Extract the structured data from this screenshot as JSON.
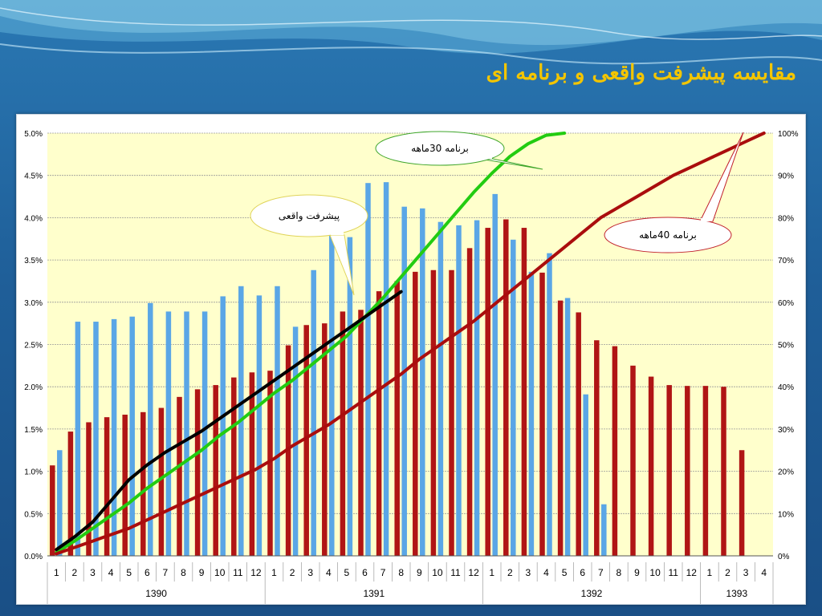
{
  "slide": {
    "title": "مقایسه پیشرفت واقعی و برنامه ای"
  },
  "colors": {
    "title": "#f3c500",
    "plot_bg": "#ffffcc",
    "bar_blue": "#5aa6e6",
    "bar_red": "#b01515",
    "line_green": "#22cc11",
    "line_red": "#aa0d0d",
    "line_black": "#000000"
  },
  "chart_data": {
    "type": "bar",
    "categories": [
      "1",
      "2",
      "3",
      "4",
      "5",
      "6",
      "7",
      "8",
      "9",
      "10",
      "11",
      "12",
      "1",
      "2",
      "3",
      "4",
      "5",
      "6",
      "7",
      "8",
      "9",
      "10",
      "11",
      "12",
      "1",
      "2",
      "3",
      "4",
      "5",
      "6",
      "7",
      "8",
      "9",
      "10",
      "11",
      "12",
      "1",
      "2",
      "3",
      "4"
    ],
    "year_groups": [
      {
        "label": "1390",
        "count": 12
      },
      {
        "label": "1391",
        "count": 12
      },
      {
        "label": "1392",
        "count": 12
      },
      {
        "label": "1393",
        "count": 4
      }
    ],
    "left_axis": {
      "min": 0,
      "max": 5,
      "ticks": [
        "0.0%",
        "0.5%",
        "1.0%",
        "1.5%",
        "2.0%",
        "2.5%",
        "3.0%",
        "3.5%",
        "4.0%",
        "4.5%",
        "5.0%"
      ]
    },
    "right_axis": {
      "min": 0,
      "max": 100,
      "ticks": [
        "0%",
        "10%",
        "20%",
        "30%",
        "40%",
        "50%",
        "60%",
        "70%",
        "80%",
        "90%",
        "100%"
      ]
    },
    "grid": true,
    "bar_series": [
      {
        "color": "#b01515",
        "values": [
          1.07,
          1.47,
          1.58,
          1.64,
          1.67,
          1.7,
          1.75,
          1.88,
          1.97,
          2.02,
          2.11,
          2.17,
          2.19,
          2.49,
          2.73,
          2.75,
          2.89,
          2.91,
          3.13,
          3.25,
          3.36,
          3.38,
          3.38,
          3.64,
          3.88,
          3.98,
          3.88,
          3.35,
          3.02,
          2.88,
          2.55,
          2.48,
          2.25,
          2.12,
          2.02,
          2.01,
          2.01,
          2.0,
          1.25
        ]
      },
      {
        "color": "#5aa6e6",
        "values": [
          1.25,
          2.77,
          2.77,
          2.8,
          2.83,
          2.99,
          2.89,
          2.89,
          2.89,
          3.07,
          3.19,
          3.08,
          3.19,
          2.71,
          3.38,
          3.85,
          3.77,
          4.41,
          4.42,
          4.13,
          4.11,
          3.95,
          3.91,
          3.97,
          4.28,
          3.74,
          3.36,
          3.58,
          3.05,
          1.91,
          0.61
        ]
      }
    ],
    "line_series": [
      {
        "name": "برنامه 30ماهه",
        "color": "#22cc11",
        "values": [
          0.8,
          3.5,
          6.5,
          9.5,
          12.5,
          16,
          19,
          22,
          25,
          28.5,
          31.5,
          35,
          38.5,
          41.5,
          45,
          48.5,
          52,
          56.5,
          61,
          66,
          71,
          76,
          81,
          86,
          90.5,
          94.5,
          97.5,
          99.5,
          100
        ]
      },
      {
        "name": "برنامه 40ماهه",
        "color": "#aa0d0d",
        "values": [
          0.5,
          2,
          3.5,
          5,
          6.5,
          8.5,
          10.5,
          12.5,
          14.5,
          16.5,
          18.5,
          20.5,
          23,
          26,
          28.5,
          31,
          34,
          37,
          40,
          43,
          46.5,
          49.5,
          52.5,
          55.5,
          59,
          62.5,
          66,
          69.5,
          73,
          76.5,
          80,
          82.5,
          85,
          87.5,
          90,
          92,
          94,
          96,
          98,
          100
        ]
      },
      {
        "name": "پیشرفت واقعی",
        "color": "#000000",
        "values": [
          1.5,
          4.5,
          8,
          13,
          18,
          21.5,
          24.5,
          27,
          29.5,
          32.5,
          35.5,
          38.5,
          41.5,
          44.5,
          47.5,
          50.5,
          53.5,
          56.5,
          59.5,
          62.5
        ]
      }
    ],
    "annotations": [
      {
        "text": "برنامه 30ماهه",
        "target_series": 0
      },
      {
        "text": "پیشرفت واقعی",
        "target_series": 2
      },
      {
        "text": "برنامه 40ماهه",
        "target_series": 1
      }
    ]
  }
}
